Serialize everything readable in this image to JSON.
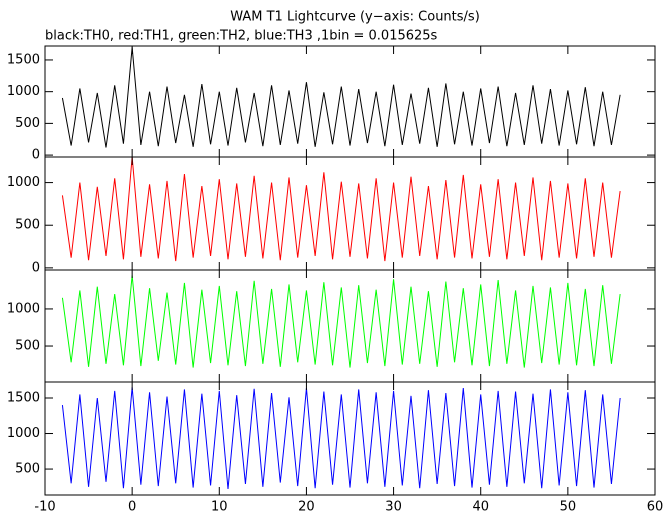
{
  "chart_data": [
    {
      "type": "line",
      "title": "WAM T1 Lightcurve (y−axis: Counts/s)",
      "subtitle": "black:TH0, red:TH1, green:TH2, blue:TH3 ,1bin = 0.015625s",
      "x": [
        -8,
        -7,
        -6,
        -5,
        -4,
        -3,
        -2,
        -1,
        0,
        1,
        2,
        3,
        4,
        5,
        6,
        7,
        8,
        9,
        10,
        11,
        12,
        13,
        14,
        15,
        16,
        17,
        18,
        19,
        20,
        21,
        22,
        23,
        24,
        25,
        26,
        27,
        28,
        29,
        30,
        31,
        32,
        33,
        34,
        35,
        36,
        37,
        38,
        39,
        40,
        41,
        42,
        43,
        44,
        45,
        46,
        47,
        48,
        49,
        50,
        51,
        52,
        53,
        54,
        55,
        56
      ],
      "series": [
        {
          "color": "#000000",
          "values": [
            900,
            150,
            1050,
            200,
            980,
            120,
            1100,
            180,
            1700,
            160,
            1000,
            140,
            1080,
            190,
            950,
            130,
            1120,
            170,
            1000,
            150,
            1060,
            200,
            980,
            140,
            1100,
            160,
            1020,
            180,
            1150,
            130,
            990,
            170,
            1080,
            150,
            1040,
            190,
            1000,
            140,
            1110,
            160,
            970,
            180,
            1060,
            130,
            1130,
            170,
            1000,
            150,
            1050,
            190,
            1080,
            140,
            980,
            160,
            1100,
            180,
            1040,
            150,
            1020,
            170,
            1070,
            140,
            1000,
            160,
            950
          ]
        }
      ],
      "xlim": [
        -10,
        60
      ],
      "xticks": [
        -10,
        0,
        10,
        20,
        30,
        40,
        50,
        60
      ],
      "ylim": [
        -30,
        1720
      ],
      "yticks": [
        0,
        500,
        1000,
        1500
      ]
    },
    {
      "type": "line",
      "x": [
        -8,
        -7,
        -6,
        -5,
        -4,
        -3,
        -2,
        -1,
        0,
        1,
        2,
        3,
        4,
        5,
        6,
        7,
        8,
        9,
        10,
        11,
        12,
        13,
        14,
        15,
        16,
        17,
        18,
        19,
        20,
        21,
        22,
        23,
        24,
        25,
        26,
        27,
        28,
        29,
        30,
        31,
        32,
        33,
        34,
        35,
        36,
        37,
        38,
        39,
        40,
        41,
        42,
        43,
        44,
        45,
        46,
        47,
        48,
        49,
        50,
        51,
        52,
        53,
        54,
        55,
        56
      ],
      "series": [
        {
          "color": "#ff0000",
          "values": [
            850,
            120,
            1000,
            90,
            950,
            140,
            1050,
            100,
            1300,
            130,
            980,
            110,
            1020,
            80,
            1100,
            120,
            960,
            140,
            1040,
            100,
            990,
            130,
            1080,
            110,
            1000,
            90,
            1060,
            120,
            970,
            140,
            1120,
            100,
            1010,
            130,
            990,
            110,
            1050,
            80,
            1000,
            120,
            1070,
            140,
            960,
            100,
            1030,
            120,
            1090,
            110,
            980,
            130,
            1040,
            100,
            1000,
            140,
            1060,
            90,
            1020,
            120,
            990,
            110,
            1050,
            130,
            1000,
            120,
            900
          ]
        }
      ],
      "xlim": [
        -10,
        60
      ],
      "xticks": [
        -10,
        0,
        10,
        20,
        30,
        40,
        50,
        60
      ],
      "ylim": [
        -25,
        1300
      ],
      "yticks": [
        0,
        500,
        1000
      ]
    },
    {
      "type": "line",
      "x": [
        -8,
        -7,
        -6,
        -5,
        -4,
        -3,
        -2,
        -1,
        0,
        1,
        2,
        3,
        4,
        5,
        6,
        7,
        8,
        9,
        10,
        11,
        12,
        13,
        14,
        15,
        16,
        17,
        18,
        19,
        20,
        21,
        22,
        23,
        24,
        25,
        26,
        27,
        28,
        29,
        30,
        31,
        32,
        33,
        34,
        35,
        36,
        37,
        38,
        39,
        40,
        41,
        42,
        43,
        44,
        45,
        46,
        47,
        48,
        49,
        50,
        51,
        52,
        53,
        54,
        55,
        56
      ],
      "series": [
        {
          "color": "#00ff00",
          "values": [
            1150,
            280,
            1250,
            220,
            1300,
            260,
            1200,
            240,
            1450,
            230,
            1280,
            300,
            1220,
            250,
            1350,
            210,
            1260,
            270,
            1310,
            240,
            1240,
            230,
            1380,
            260,
            1270,
            220,
            1330,
            280,
            1250,
            250,
            1360,
            240,
            1290,
            210,
            1320,
            270,
            1260,
            230,
            1400,
            250,
            1300,
            260,
            1240,
            220,
            1370,
            280,
            1280,
            240,
            1330,
            230,
            1390,
            260,
            1250,
            210,
            1310,
            270,
            1290,
            250,
            1350,
            240,
            1270,
            230,
            1320,
            260,
            1200
          ]
        }
      ],
      "xlim": [
        -10,
        60
      ],
      "xticks": [
        -10,
        0,
        10,
        20,
        30,
        40,
        50,
        60
      ],
      "ylim": [
        15,
        1525
      ],
      "yticks": [
        500,
        1000
      ]
    },
    {
      "type": "line",
      "x": [
        -8,
        -7,
        -6,
        -5,
        -4,
        -3,
        -2,
        -1,
        0,
        1,
        2,
        3,
        4,
        5,
        6,
        7,
        8,
        9,
        10,
        11,
        12,
        13,
        14,
        15,
        16,
        17,
        18,
        19,
        20,
        21,
        22,
        23,
        24,
        25,
        26,
        27,
        28,
        29,
        30,
        31,
        32,
        33,
        34,
        35,
        36,
        37,
        38,
        39,
        40,
        41,
        42,
        43,
        44,
        45,
        46,
        47,
        48,
        49,
        50,
        51,
        52,
        53,
        54,
        55,
        56
      ],
      "series": [
        {
          "color": "#0000ff",
          "values": [
            1400,
            300,
            1550,
            250,
            1500,
            320,
            1600,
            230,
            1650,
            280,
            1580,
            260,
            1520,
            300,
            1620,
            240,
            1560,
            270,
            1600,
            220,
            1540,
            290,
            1630,
            250,
            1570,
            310,
            1510,
            260,
            1640,
            230,
            1590,
            280,
            1550,
            240,
            1620,
            300,
            1580,
            250,
            1600,
            270,
            1530,
            230,
            1610,
            290,
            1570,
            260,
            1640,
            240,
            1550,
            280,
            1600,
            250,
            1590,
            300,
            1560,
            230,
            1620,
            270,
            1580,
            260,
            1610,
            240,
            1550,
            290,
            1500
          ]
        }
      ],
      "xlim": [
        -10,
        60
      ],
      "xticks": [
        -10,
        0,
        10,
        20,
        30,
        40,
        50,
        60
      ],
      "ylim": [
        135,
        1725
      ],
      "yticks": [
        500,
        1000,
        1500
      ],
      "xtick_labels": true
    }
  ]
}
